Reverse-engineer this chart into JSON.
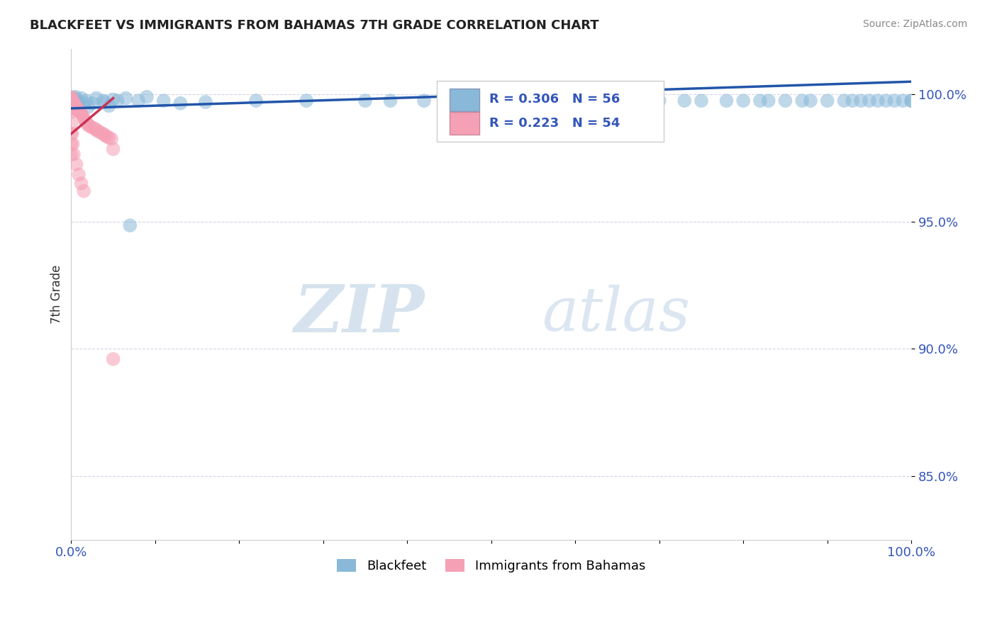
{
  "title": "BLACKFEET VS IMMIGRANTS FROM BAHAMAS 7TH GRADE CORRELATION CHART",
  "source_text": "Source: ZipAtlas.com",
  "ylabel": "7th Grade",
  "xlim": [
    0.0,
    1.0
  ],
  "ylim": [
    0.825,
    1.018
  ],
  "yticks": [
    0.85,
    0.9,
    0.95,
    1.0
  ],
  "ytick_labels": [
    "85.0%",
    "90.0%",
    "95.0%",
    "100.0%"
  ],
  "xtick_labels": [
    "0.0%",
    "",
    "",
    "",
    "",
    "",
    "",
    "",
    "",
    "",
    "100.0%"
  ],
  "blue_color": "#89b8d8",
  "pink_color": "#f5a0b5",
  "blue_line_color": "#2255aa",
  "pink_line_color": "#cc3355",
  "legend_text_color": "#3355bb",
  "legend_label_blue": "Blackfeet",
  "legend_label_pink": "Immigrants from Bahamas",
  "watermark_zip": "ZIP",
  "watermark_atlas": "atlas",
  "blue_scatter_x": [
    0.003,
    0.005,
    0.008,
    0.012,
    0.015,
    0.018,
    0.025,
    0.03,
    0.038,
    0.045,
    0.05,
    0.055,
    0.065,
    0.08,
    0.09,
    0.11,
    0.13,
    0.16,
    0.22,
    0.28,
    0.35,
    0.45,
    0.5,
    0.6,
    0.65,
    0.7,
    0.75,
    0.78,
    0.82,
    0.85,
    0.87,
    0.9,
    0.92,
    0.94,
    0.95,
    0.96,
    0.97,
    0.98,
    0.99,
    1.0,
    1.0,
    0.004,
    0.009,
    0.02,
    0.04,
    0.07,
    0.38,
    0.42,
    0.48,
    0.58,
    0.68,
    0.73,
    0.8,
    0.83,
    0.88,
    0.93
  ],
  "blue_scatter_y": [
    0.9975,
    0.999,
    0.9975,
    0.9985,
    0.9965,
    0.9975,
    0.9965,
    0.9985,
    0.9975,
    0.9955,
    0.998,
    0.9975,
    0.9985,
    0.9975,
    0.999,
    0.9975,
    0.9965,
    0.997,
    0.9975,
    0.9975,
    0.9975,
    0.9975,
    0.9975,
    0.9975,
    0.9975,
    0.9975,
    0.9975,
    0.9975,
    0.9975,
    0.9975,
    0.9975,
    0.9975,
    0.9975,
    0.9975,
    0.9975,
    0.9975,
    0.9975,
    0.9975,
    0.9975,
    0.9975,
    0.9975,
    0.9985,
    0.9965,
    0.995,
    0.997,
    0.9485,
    0.9975,
    0.9975,
    0.9975,
    0.9975,
    0.9975,
    0.9975,
    0.9975,
    0.9975,
    0.9975,
    0.9975
  ],
  "pink_scatter_x": [
    0.0,
    0.0,
    0.0,
    0.0,
    0.0,
    0.0,
    0.0,
    0.0,
    0.0,
    0.0,
    0.001,
    0.001,
    0.001,
    0.001,
    0.002,
    0.002,
    0.003,
    0.004,
    0.005,
    0.006,
    0.007,
    0.008,
    0.009,
    0.01,
    0.012,
    0.013,
    0.015,
    0.016,
    0.018,
    0.02,
    0.022,
    0.025,
    0.028,
    0.03,
    0.032,
    0.035,
    0.038,
    0.04,
    0.042,
    0.045,
    0.048,
    0.05,
    0.0,
    0.0,
    0.0,
    0.0,
    0.001,
    0.002,
    0.003,
    0.006,
    0.009,
    0.012,
    0.015,
    0.05
  ],
  "pink_scatter_y": [
    0.9985,
    0.999,
    0.998,
    0.9975,
    0.997,
    0.9965,
    0.996,
    0.995,
    0.994,
    0.993,
    0.9975,
    0.997,
    0.9965,
    0.996,
    0.9975,
    0.997,
    0.9965,
    0.996,
    0.9955,
    0.995,
    0.9945,
    0.994,
    0.9935,
    0.993,
    0.9925,
    0.992,
    0.9905,
    0.99,
    0.989,
    0.988,
    0.9875,
    0.987,
    0.9865,
    0.986,
    0.9855,
    0.985,
    0.9845,
    0.984,
    0.9835,
    0.983,
    0.9825,
    0.9785,
    0.9885,
    0.9845,
    0.9805,
    0.9765,
    0.9845,
    0.9805,
    0.9765,
    0.9725,
    0.9685,
    0.965,
    0.962,
    0.896
  ],
  "blue_trend_x": [
    0.0,
    1.0
  ],
  "blue_trend_y": [
    0.9945,
    1.005
  ],
  "pink_trend_x": [
    0.0,
    0.05
  ],
  "pink_trend_y": [
    0.9845,
    0.9985
  ]
}
